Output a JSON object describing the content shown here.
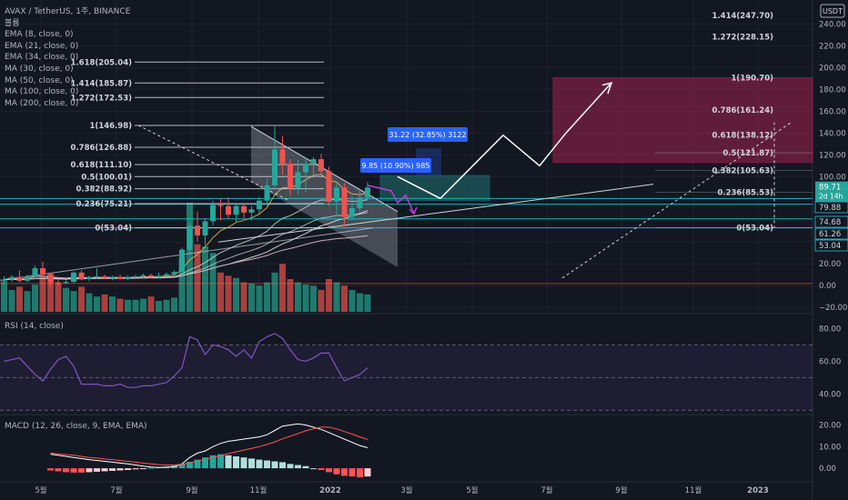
{
  "symbol": {
    "title": "AVAX / TetherUS, 1주, BINANCE",
    "volume_label": "볼륨",
    "indicators": [
      "EMA (8, close, 0)",
      "EMA (21, close, 0)",
      "EMA (34, close, 0)",
      "MA (30, close, 0)",
      "MA (50, close, 0)",
      "MA (100, close, 0)",
      "MA (200, close, 0)"
    ]
  },
  "currency_label": "USDT",
  "colors": {
    "background": "#131722",
    "grid": "#1e222d",
    "up": "#26a69a",
    "down": "#ef5350",
    "fib_line": "#d1d4dc",
    "channel_fill": "#d1d4dc",
    "target_zone": "#a0234f",
    "level_line": "#26c6da",
    "rsi_line": "#7e57c2",
    "macd_line": "#ffffff",
    "signal_line": "#ff5252",
    "badge": "#2962ff",
    "path_arrow": "#c33ad8"
  },
  "chart_data": [
    {
      "type": "candlestick",
      "price_axis": {
        "ticks": [
          240,
          220,
          200,
          180,
          160,
          140,
          120,
          100,
          80,
          60,
          40,
          20,
          0,
          -20
        ],
        "tick_labels": [
          "240.00",
          "220.00",
          "200.00",
          "180.00",
          "160.00",
          "140.00",
          "120.00",
          "100.00",
          "80.00",
          "60.00",
          "40.00",
          "20.00",
          "0.00",
          "−20.00"
        ],
        "range": [
          -24,
          262
        ]
      },
      "time_axis": {
        "labels": [
          "5월",
          "7월",
          "9월",
          "11월",
          "2022",
          "3월",
          "5월",
          "7월",
          "9월",
          "11월",
          "2023"
        ]
      },
      "last_price": "89.71",
      "countdown": "2d 14h",
      "price_markers": [
        "79.88",
        "74.68",
        "61.26",
        "53.04"
      ],
      "volume_scale_max": 100,
      "bars": [
        {
          "o": 4.5,
          "h": 8.5,
          "l": 1.5,
          "c": 5.5,
          "v": 28
        },
        {
          "o": 5.5,
          "h": 9.5,
          "l": 3.5,
          "c": 8.0,
          "v": 20
        },
        {
          "o": 8.0,
          "h": 14.0,
          "l": 3.0,
          "c": 4.5,
          "v": 23
        },
        {
          "o": 4.5,
          "h": 10.0,
          "l": 3.0,
          "c": 8.5,
          "v": 19
        },
        {
          "o": 8.5,
          "h": 18.5,
          "l": 6.0,
          "c": 16.0,
          "v": 25
        },
        {
          "o": 16.0,
          "h": 22.0,
          "l": 7.0,
          "c": 10.0,
          "v": 31
        },
        {
          "o": 10.0,
          "h": 12.0,
          "l": -1.0,
          "c": 3.0,
          "v": 35
        },
        {
          "o": 3.0,
          "h": 6.0,
          "l": 0.0,
          "c": 2.5,
          "v": 27
        },
        {
          "o": 2.5,
          "h": 5.0,
          "l": 1.0,
          "c": 3.5,
          "v": 22
        },
        {
          "o": 3.5,
          "h": 13.0,
          "l": 2.0,
          "c": 12.0,
          "v": 19
        },
        {
          "o": 12.0,
          "h": 14.0,
          "l": 5.0,
          "c": 6.0,
          "v": 23
        },
        {
          "o": 6.0,
          "h": 9.0,
          "l": 4.0,
          "c": 8.0,
          "v": 17
        },
        {
          "o": 8.0,
          "h": 16.0,
          "l": 6.0,
          "c": 8.5,
          "v": 14
        },
        {
          "o": 8.5,
          "h": 10.0,
          "l": 6.0,
          "c": 7.0,
          "v": 16
        },
        {
          "o": 7.0,
          "h": 9.0,
          "l": 5.0,
          "c": 8.0,
          "v": 14
        },
        {
          "o": 8.0,
          "h": 10.0,
          "l": 6.0,
          "c": 6.0,
          "v": 12
        },
        {
          "o": 6.0,
          "h": 9.0,
          "l": 5.0,
          "c": 8.0,
          "v": 11
        },
        {
          "o": 8.0,
          "h": 10.0,
          "l": 7.0,
          "c": 8.5,
          "v": 11
        },
        {
          "o": 8.5,
          "h": 11.0,
          "l": 7.0,
          "c": 9.5,
          "v": 12
        },
        {
          "o": 9.5,
          "h": 11.0,
          "l": 7.0,
          "c": 8.0,
          "v": 14
        },
        {
          "o": 8.0,
          "h": 12.0,
          "l": 7.0,
          "c": 9.0,
          "v": 10
        },
        {
          "o": 9.0,
          "h": 12.0,
          "l": 8.0,
          "c": 10.5,
          "v": 11
        },
        {
          "o": 10.5,
          "h": 14.0,
          "l": 9.0,
          "c": 12.5,
          "v": 13
        },
        {
          "o": 12.5,
          "h": 35.0,
          "l": 11.0,
          "c": 33.0,
          "v": 49
        },
        {
          "o": 33.0,
          "h": 58.0,
          "l": 30.0,
          "c": 55.0,
          "v": 100
        },
        {
          "o": 55.0,
          "h": 68.0,
          "l": 40.0,
          "c": 46.0,
          "v": 62
        },
        {
          "o": 46.0,
          "h": 62.0,
          "l": 37.0,
          "c": 59.0,
          "v": 60
        },
        {
          "o": 59.0,
          "h": 78.0,
          "l": 55.0,
          "c": 74.0,
          "v": 54
        },
        {
          "o": 74.0,
          "h": 80.0,
          "l": 60.0,
          "c": 73.0,
          "v": 36
        },
        {
          "o": 73.0,
          "h": 81.0,
          "l": 62.0,
          "c": 65.0,
          "v": 33
        },
        {
          "o": 65.0,
          "h": 76.0,
          "l": 58.0,
          "c": 73.0,
          "v": 31
        },
        {
          "o": 73.0,
          "h": 75.0,
          "l": 62.0,
          "c": 67.0,
          "v": 27
        },
        {
          "o": 67.0,
          "h": 73.0,
          "l": 60.0,
          "c": 70.0,
          "v": 26
        },
        {
          "o": 70.0,
          "h": 81.0,
          "l": 66.0,
          "c": 78.0,
          "v": 24
        },
        {
          "o": 78.0,
          "h": 98.0,
          "l": 73.0,
          "c": 92.0,
          "v": 27
        },
        {
          "o": 92.0,
          "h": 146.0,
          "l": 88.0,
          "c": 125.0,
          "v": 36
        },
        {
          "o": 125.0,
          "h": 137.0,
          "l": 102.0,
          "c": 112.0,
          "v": 44
        },
        {
          "o": 112.0,
          "h": 116.0,
          "l": 83.0,
          "c": 89.0,
          "v": 30
        },
        {
          "o": 89.0,
          "h": 115.0,
          "l": 84.0,
          "c": 104.0,
          "v": 27
        },
        {
          "o": 104.0,
          "h": 117.0,
          "l": 86.0,
          "c": 112.0,
          "v": 25
        },
        {
          "o": 112.0,
          "h": 118.0,
          "l": 102.0,
          "c": 116.0,
          "v": 24
        },
        {
          "o": 116.0,
          "h": 121.0,
          "l": 103.0,
          "c": 105.0,
          "v": 20
        },
        {
          "o": 105.0,
          "h": 109.0,
          "l": 73.0,
          "c": 77.0,
          "v": 30
        },
        {
          "o": 77.0,
          "h": 95.0,
          "l": 64.0,
          "c": 90.0,
          "v": 27
        },
        {
          "o": 90.0,
          "h": 94.0,
          "l": 55.0,
          "c": 63.0,
          "v": 24
        },
        {
          "o": 63.0,
          "h": 82.0,
          "l": 60.0,
          "c": 71.0,
          "v": 20
        },
        {
          "o": 71.0,
          "h": 87.0,
          "l": 68.0,
          "c": 81.0,
          "v": 17
        },
        {
          "o": 81.0,
          "h": 95.0,
          "l": 78.0,
          "c": 90.0,
          "v": 16
        }
      ],
      "fib_left": [
        {
          "label": "1.618(205.04)",
          "value": 205.04
        },
        {
          "label": "1.414(185.87)",
          "value": 185.87
        },
        {
          "label": "1.272(172.53)",
          "value": 172.53
        },
        {
          "label": "1(146.98)",
          "value": 146.98
        },
        {
          "label": "0.786(126.88)",
          "value": 126.88
        },
        {
          "label": "0.618(111.10)",
          "value": 111.1
        },
        {
          "label": "0.5(100.01)",
          "value": 100.01
        },
        {
          "label": "0.382(88.92)",
          "value": 88.92
        },
        {
          "label": "0.236(75.21)",
          "value": 75.21
        },
        {
          "label": "0(53.04)",
          "value": 53.04
        }
      ],
      "fib_right": [
        {
          "label": "1.414(247.70)",
          "value": 247.7
        },
        {
          "label": "1.272(228.15)",
          "value": 228.15
        },
        {
          "label": "1(190.70)",
          "value": 190.7
        },
        {
          "label": "0.786(161.24)",
          "value": 161.24
        },
        {
          "label": "0.618(138.12)",
          "value": 138.12
        },
        {
          "label": "0.5(121.87)",
          "value": 121.87
        },
        {
          "label": "0.382(105.63)",
          "value": 105.63
        },
        {
          "label": "0.236(85.53)",
          "value": 85.53
        },
        {
          "label": "0(53.04)",
          "value": 53.04
        }
      ],
      "measure_badges": [
        {
          "text": "31.22 (32.85%) 3122"
        },
        {
          "text": "9.85 (10.90%) 985"
        }
      ]
    },
    {
      "type": "line",
      "title": "RSI (14, close)",
      "ticks": [
        80,
        60,
        40
      ],
      "tick_labels": [
        "80.00",
        "60.00",
        "40.00"
      ],
      "range": [
        28,
        88
      ],
      "bands": [
        70,
        50,
        30
      ],
      "values": [
        60,
        61,
        62,
        57,
        52,
        48,
        55,
        61,
        63,
        57,
        46,
        46,
        46,
        45,
        45,
        46,
        44,
        44,
        45,
        45,
        46,
        47,
        51,
        56,
        75,
        73,
        64,
        70,
        69,
        67,
        63,
        67,
        62,
        72,
        75,
        77,
        74,
        67,
        61,
        60,
        62,
        65,
        65,
        56,
        48,
        50,
        52,
        56
      ]
    },
    {
      "type": "bar",
      "title": "MACD (12, 26, close, 9, EMA, EMA)",
      "ticks": [
        20,
        10,
        0
      ],
      "tick_labels": [
        "20.00",
        "10.00",
        "0.00"
      ],
      "range": [
        -5,
        24
      ],
      "histogram": [
        null,
        null,
        null,
        null,
        null,
        null,
        -1.0,
        -1.4,
        -1.8,
        -2.0,
        -2.0,
        -1.8,
        -1.6,
        -1.4,
        -1.2,
        -1.0,
        -0.8,
        -0.5,
        -0.2,
        0.2,
        0.5,
        0.8,
        1.2,
        2.0,
        3.0,
        4.0,
        5.0,
        6.0,
        6.5,
        6.0,
        5.5,
        5.0,
        4.5,
        4.0,
        3.6,
        3.2,
        2.8,
        2.0,
        1.5,
        1.0,
        0.0,
        -0.8,
        -1.8,
        -2.8,
        -3.5,
        -3.8,
        -4.2,
        -3.8
      ],
      "macd": [
        null,
        null,
        null,
        null,
        null,
        null,
        6.5,
        6.0,
        5.5,
        5.0,
        4.5,
        4.0,
        3.6,
        3.2,
        2.8,
        2.4,
        2.0,
        1.5,
        1.0,
        0.6,
        0.4,
        0.5,
        0.8,
        2.0,
        5.0,
        7.0,
        8.0,
        10.0,
        11.5,
        12.5,
        13.0,
        13.5,
        14.0,
        14.5,
        15.5,
        17.5,
        19.5,
        20.0,
        20.5,
        20.0,
        19.0,
        18.0,
        16.5,
        15.0,
        13.5,
        12.0,
        10.5,
        9.5
      ],
      "signal": [
        null,
        null,
        null,
        null,
        null,
        null,
        7.0,
        6.7,
        6.3,
        6.0,
        5.5,
        5.0,
        4.7,
        4.3,
        4.0,
        3.6,
        3.2,
        2.8,
        2.4,
        2.0,
        1.7,
        1.5,
        1.5,
        1.8,
        2.5,
        3.3,
        4.1,
        5.0,
        5.9,
        6.8,
        7.6,
        8.4,
        9.2,
        10.0,
        11.0,
        12.2,
        13.6,
        14.8,
        16.0,
        17.3,
        18.3,
        19.0,
        19.0,
        18.2,
        17.0,
        15.8,
        14.5,
        13.3
      ]
    }
  ]
}
